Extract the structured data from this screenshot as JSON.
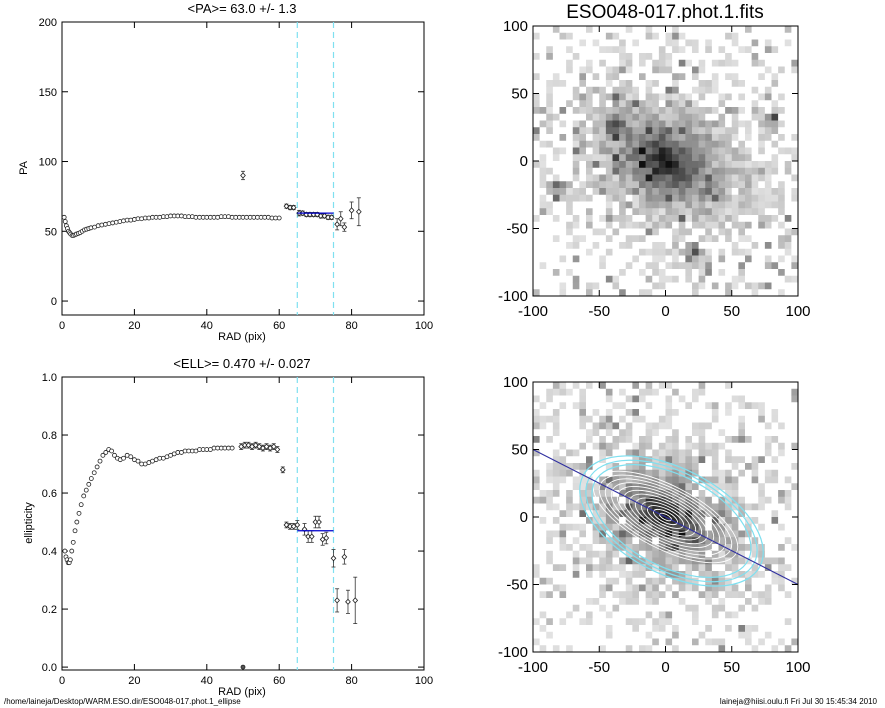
{
  "chart_data": [
    {
      "type": "scatter",
      "title": "<PA>=  63.0 +/-    1.3",
      "xlabel": "RAD (pix)",
      "ylabel": "PA",
      "xlim": [
        0,
        100
      ],
      "ylim": [
        -10,
        200
      ],
      "xticks": [
        "0",
        "20",
        "40",
        "60",
        "80",
        "100"
      ],
      "yticks": [
        "0",
        "50",
        "100",
        "150",
        "200"
      ],
      "vlines": [
        65,
        75
      ],
      "fit_range": [
        65,
        75
      ],
      "fit_value": 63.0,
      "series": [
        {
          "points": [
            [
              0.6,
              60
            ],
            [
              0.9,
              57
            ],
            [
              1.2,
              54
            ],
            [
              1.5,
              52
            ],
            [
              1.8,
              50
            ],
            [
              2.1,
              49
            ],
            [
              2.4,
              48
            ],
            [
              2.8,
              47
            ],
            [
              3.2,
              47
            ],
            [
              3.6,
              47.5
            ],
            [
              4.0,
              48
            ],
            [
              4.5,
              48.5
            ],
            [
              5.0,
              49
            ],
            [
              5.6,
              50
            ],
            [
              6.2,
              51
            ],
            [
              6.8,
              51.5
            ],
            [
              7.4,
              52
            ],
            [
              8,
              52.5
            ],
            [
              9,
              53
            ],
            [
              10,
              54
            ],
            [
              11,
              54.5
            ],
            [
              12,
              55
            ],
            [
              13,
              55.5
            ],
            [
              14,
              56
            ],
            [
              15,
              56.5
            ],
            [
              16,
              57
            ],
            [
              17,
              57.5
            ],
            [
              18,
              58
            ],
            [
              19,
              58
            ],
            [
              20,
              58.5
            ],
            [
              21,
              59
            ],
            [
              22,
              59
            ],
            [
              23,
              59.5
            ],
            [
              24,
              59.5
            ],
            [
              25,
              60
            ],
            [
              26,
              60
            ],
            [
              27,
              60
            ],
            [
              28,
              60.5
            ],
            [
              29,
              60.5
            ],
            [
              30,
              61
            ],
            [
              31,
              61
            ],
            [
              32,
              61
            ],
            [
              33,
              61
            ],
            [
              34,
              60.5
            ],
            [
              35,
              60.5
            ],
            [
              36,
              60.5
            ],
            [
              37,
              60
            ],
            [
              38,
              60
            ],
            [
              39,
              60
            ],
            [
              40,
              60
            ],
            [
              41,
              60
            ],
            [
              42,
              60
            ],
            [
              43,
              60
            ],
            [
              44,
              60.5
            ],
            [
              45,
              60.5
            ],
            [
              46,
              60.5
            ],
            [
              47,
              60
            ],
            [
              48,
              60
            ],
            [
              49,
              60
            ],
            [
              50,
              60
            ],
            [
              51,
              60
            ],
            [
              52,
              60
            ],
            [
              53,
              60
            ],
            [
              54,
              60
            ],
            [
              55,
              60
            ],
            [
              56,
              60
            ],
            [
              57,
              60
            ],
            [
              58,
              59.5
            ],
            [
              59,
              59.5
            ],
            [
              60,
              59.5
            ]
          ],
          "errors": [
            [
              50,
              90,
              3
            ],
            [
              62,
              68,
              1.5
            ],
            [
              63,
              67,
              1.5
            ],
            [
              64,
              67,
              1.5
            ],
            [
              65.5,
              63,
              2
            ],
            [
              66.5,
              63,
              1.5
            ],
            [
              67.5,
              62,
              1.5
            ],
            [
              68.5,
              62,
              1.5
            ],
            [
              69.5,
              62,
              1.5
            ],
            [
              70.5,
              62,
              1.5
            ],
            [
              71.5,
              61,
              1.5
            ],
            [
              72.5,
              61,
              1.5
            ],
            [
              73.5,
              60,
              1.5
            ],
            [
              74.5,
              60,
              1.5
            ],
            [
              76,
              55,
              4
            ],
            [
              77,
              59,
              5
            ],
            [
              78,
              53,
              3
            ],
            [
              80,
              65,
              6
            ],
            [
              82,
              64,
              10
            ]
          ]
        }
      ]
    },
    {
      "type": "scatter",
      "title": "<ELL>= 0.470 +/-  0.027",
      "xlabel": "RAD (pix)",
      "ylabel": "ellipticity",
      "xlim": [
        0,
        100
      ],
      "ylim": [
        -0.01,
        1.0
      ],
      "xticks": [
        "0",
        "20",
        "40",
        "60",
        "80",
        "100"
      ],
      "yticks": [
        "0.0",
        "0.2",
        "0.4",
        "0.6",
        "0.8",
        "1.0"
      ],
      "vlines": [
        65,
        75
      ],
      "fit_range": [
        65,
        75
      ],
      "fit_value": 0.47,
      "series": [
        {
          "points": [
            [
              0.8,
              0.4
            ],
            [
              1.1,
              0.38
            ],
            [
              1.4,
              0.37
            ],
            [
              1.7,
              0.36
            ],
            [
              2.0,
              0.36
            ],
            [
              2.3,
              0.37
            ],
            [
              2.7,
              0.4
            ],
            [
              3.1,
              0.43
            ],
            [
              3.6,
              0.47
            ],
            [
              4.1,
              0.5
            ],
            [
              4.7,
              0.53
            ],
            [
              5.3,
              0.56
            ],
            [
              6.0,
              0.59
            ],
            [
              6.7,
              0.61
            ],
            [
              7.4,
              0.63
            ],
            [
              8.1,
              0.65
            ],
            [
              8.9,
              0.67
            ],
            [
              9.7,
              0.69
            ],
            [
              10.5,
              0.71
            ],
            [
              11.3,
              0.73
            ],
            [
              12.1,
              0.74
            ],
            [
              12.9,
              0.75
            ],
            [
              13.7,
              0.745
            ],
            [
              14.5,
              0.73
            ],
            [
              15.3,
              0.72
            ],
            [
              16.1,
              0.715
            ],
            [
              17,
              0.72
            ],
            [
              18,
              0.73
            ],
            [
              19,
              0.725
            ],
            [
              20,
              0.715
            ],
            [
              21,
              0.71
            ],
            [
              22,
              0.7
            ],
            [
              23,
              0.7
            ],
            [
              24,
              0.705
            ],
            [
              25,
              0.71
            ],
            [
              26,
              0.715
            ],
            [
              27,
              0.72
            ],
            [
              28,
              0.72
            ],
            [
              29,
              0.725
            ],
            [
              30,
              0.73
            ],
            [
              31,
              0.735
            ],
            [
              32,
              0.74
            ],
            [
              33,
              0.74
            ],
            [
              34,
              0.745
            ],
            [
              35,
              0.745
            ],
            [
              36,
              0.745
            ],
            [
              37,
              0.745
            ],
            [
              38,
              0.75
            ],
            [
              39,
              0.75
            ],
            [
              40,
              0.75
            ],
            [
              41,
              0.75
            ],
            [
              42,
              0.755
            ],
            [
              43,
              0.755
            ],
            [
              44,
              0.755
            ],
            [
              45,
              0.755
            ],
            [
              46,
              0.755
            ],
            [
              47,
              0.755
            ]
          ],
          "errors": [
            [
              49.5,
              0.76,
              0.01
            ],
            [
              50.5,
              0.765,
              0.01
            ],
            [
              51.5,
              0.765,
              0.01
            ],
            [
              52.5,
              0.76,
              0.01
            ],
            [
              53.5,
              0.765,
              0.01
            ],
            [
              54.5,
              0.76,
              0.01
            ],
            [
              55.5,
              0.755,
              0.01
            ],
            [
              56.5,
              0.76,
              0.01
            ],
            [
              57.5,
              0.755,
              0.01
            ],
            [
              58.5,
              0.76,
              0.01
            ],
            [
              59.5,
              0.75,
              0.01
            ],
            [
              61,
              0.68,
              0.01
            ],
            [
              62,
              0.49,
              0.01
            ],
            [
              63,
              0.485,
              0.01
            ],
            [
              64,
              0.485,
              0.01
            ],
            [
              65,
              0.49,
              0.015
            ],
            [
              67,
              0.475,
              0.02
            ],
            [
              68,
              0.45,
              0.02
            ],
            [
              69,
              0.45,
              0.02
            ],
            [
              70,
              0.5,
              0.02
            ],
            [
              71,
              0.5,
              0.02
            ],
            [
              72,
              0.44,
              0.02
            ],
            [
              73,
              0.445,
              0.02
            ],
            [
              75,
              0.375,
              0.03
            ],
            [
              76,
              0.23,
              0.04
            ],
            [
              78,
              0.38,
              0.025
            ],
            [
              79,
              0.225,
              0.04
            ],
            [
              81,
              0.23,
              0.08
            ]
          ],
          "outliers": [
            [
              50,
              0.0
            ]
          ]
        }
      ]
    },
    {
      "type": "heatmap",
      "title": "ESO048-017.phot.1.fits",
      "xlim": [
        -100,
        100
      ],
      "ylim": [
        -100,
        100
      ],
      "xticks": [
        "-100",
        "-50",
        "0",
        "50",
        "100"
      ],
      "yticks": [
        "-100",
        "-50",
        "0",
        "50",
        "100"
      ],
      "galaxy": {
        "center": [
          0,
          0
        ],
        "pa_deg": 63,
        "ellipticity": 0.47
      },
      "bright_knots": [
        [
          -38,
          25
        ],
        [
          -80,
          -20
        ],
        [
          80,
          30
        ],
        [
          20,
          -70
        ]
      ]
    },
    {
      "type": "heatmap",
      "xlim": [
        -100,
        100
      ],
      "ylim": [
        -100,
        100
      ],
      "xticks": [
        "-100",
        "-50",
        "0",
        "50",
        "100"
      ],
      "yticks": [
        "-100",
        "-50",
        "0",
        "50",
        "100"
      ],
      "galaxy": {
        "center": [
          0,
          0
        ],
        "pa_deg": 63,
        "ellipticity": 0.47
      },
      "isophote_radii": [
        5,
        10,
        15,
        20,
        25,
        30,
        35,
        40,
        45,
        50,
        55,
        60
      ],
      "outer_isophotes": [
        65,
        70,
        75
      ],
      "major_axis_line": {
        "pa_deg": 63,
        "color": "#3030a0"
      },
      "contour_color": "#ffffff",
      "outer_contour_color": "#7fe0f0"
    }
  ],
  "footer": {
    "left": "/home/laineja/Desktop/WARM.ESO.dir/ESO048-017.phot.1_ellipse",
    "right": "laineja@hiisi.oulu.fi  Fri Jul 30 15:45:34 2010"
  },
  "colors": {
    "dashed_lines": "#7fe0f0",
    "fit_line": "#0000cc",
    "markers": "#000000"
  }
}
